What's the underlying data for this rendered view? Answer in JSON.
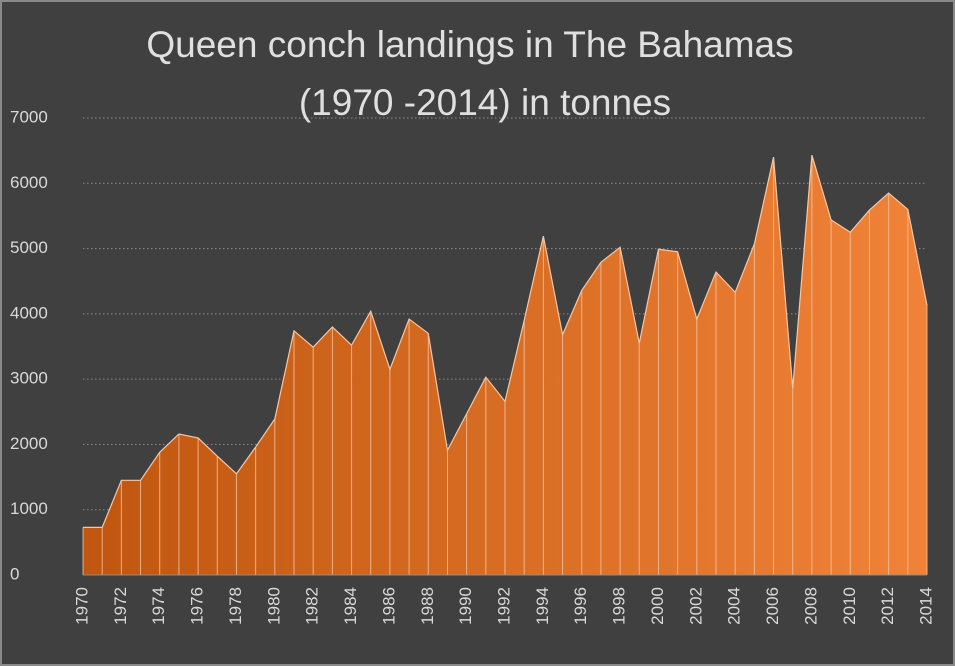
{
  "chart_data": {
    "type": "area",
    "title": [
      "Queen conch landings in The Bahamas",
      "(1970 -2014) in tonnes"
    ],
    "x": [
      1970,
      1971,
      1972,
      1973,
      1974,
      1975,
      1976,
      1977,
      1978,
      1979,
      1980,
      1981,
      1982,
      1983,
      1984,
      1985,
      1986,
      1987,
      1988,
      1989,
      1990,
      1991,
      1992,
      1993,
      1994,
      1995,
      1996,
      1997,
      1998,
      1999,
      2000,
      2001,
      2002,
      2003,
      2004,
      2005,
      2006,
      2007,
      2008,
      2009,
      2010,
      2011,
      2012,
      2013,
      2014
    ],
    "values": [
      730,
      730,
      1450,
      1450,
      1880,
      2160,
      2100,
      1820,
      1550,
      1960,
      2390,
      3740,
      3490,
      3800,
      3520,
      4040,
      3150,
      3920,
      3700,
      1910,
      2470,
      3030,
      2660,
      3900,
      5190,
      3680,
      4360,
      4790,
      5020,
      3550,
      4990,
      4950,
      3920,
      4640,
      4330,
      5070,
      6400,
      2860,
      6430,
      5440,
      5250,
      5590,
      5850,
      5600,
      4130
    ],
    "color_start": "#c0560f",
    "color_end": "#f08338",
    "xlim": [
      1970,
      2014
    ],
    "xticks": [
      1970,
      1972,
      1974,
      1976,
      1978,
      1980,
      1982,
      1984,
      1986,
      1988,
      1990,
      1992,
      1994,
      1996,
      1998,
      2000,
      2002,
      2004,
      2006,
      2008,
      2010,
      2012,
      2014
    ],
    "ylim": [
      0,
      7000
    ],
    "yticks": [
      0,
      1000,
      2000,
      3000,
      4000,
      5000,
      6000,
      7000
    ],
    "grid": true
  }
}
